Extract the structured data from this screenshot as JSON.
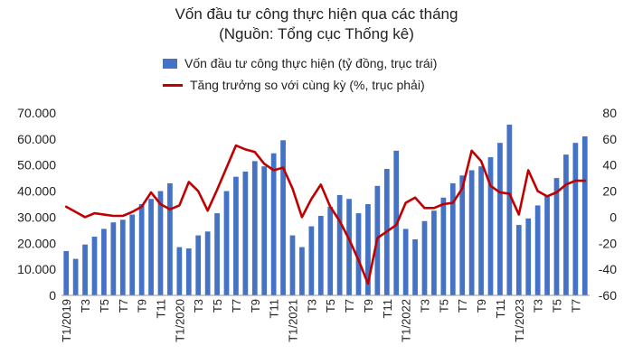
{
  "chart_data": {
    "type": "bar+line",
    "title": "Vốn đầu tư công thực hiện qua các tháng",
    "subtitle": "(Nguồn: Tổng cục Thống kê)",
    "legend": {
      "placement": "top",
      "bar_series": "Vốn đầu tư công thực hiện (tỷ đồng, trục trái)",
      "line_series": "Tăng trưởng so với cùng kỳ (%, trục phải)"
    },
    "left_axis": {
      "ylim": [
        0,
        70000
      ],
      "ticks": [
        "0",
        "10.000",
        "20.000",
        "30.000",
        "40.000",
        "50.000",
        "60.000",
        "70.000"
      ]
    },
    "right_axis": {
      "ylim": [
        -60,
        80
      ],
      "ticks": [
        "-60",
        "-40",
        "-20",
        "0",
        "20",
        "40",
        "60",
        "80"
      ]
    },
    "x_tick_labels": [
      "T1/2019",
      "T3",
      "T5",
      "T7",
      "T9",
      "T11",
      "T1/2020",
      "T3",
      "T5",
      "T7",
      "T9",
      "T11",
      "T1/2021",
      "T3",
      "T5",
      "T7",
      "T9",
      "T11",
      "T1/2022",
      "T3",
      "T5",
      "T7",
      "T9",
      "T11",
      "T1/2023",
      "T3",
      "T5",
      "T7"
    ],
    "bar_values": [
      17000,
      14000,
      19500,
      22500,
      25500,
      28000,
      29000,
      31000,
      35000,
      37000,
      40000,
      43000,
      18500,
      18000,
      23000,
      24500,
      31500,
      40000,
      45500,
      47500,
      51500,
      49500,
      54500,
      59500,
      23000,
      18500,
      26500,
      30500,
      34000,
      38500,
      37000,
      31500,
      35000,
      42000,
      48500,
      55500,
      25500,
      21500,
      28500,
      32500,
      37500,
      43000,
      46000,
      48000,
      49500,
      53000,
      58500,
      65500,
      27000,
      29500,
      34500,
      38500,
      45000,
      54000,
      58500,
      61000
    ],
    "line_values": [
      8,
      4,
      0,
      3,
      2,
      1,
      1,
      4,
      8,
      19,
      10,
      6,
      9,
      27,
      20,
      5,
      21,
      38,
      55,
      52,
      50,
      41,
      36,
      38,
      22,
      0,
      14,
      25,
      8,
      -3,
      -17,
      -33,
      -51,
      -16,
      -11,
      -6,
      11,
      15,
      7,
      7,
      10,
      11,
      22,
      51,
      43,
      24,
      19,
      18,
      2,
      36,
      20,
      16,
      19,
      25,
      28,
      28
    ]
  }
}
